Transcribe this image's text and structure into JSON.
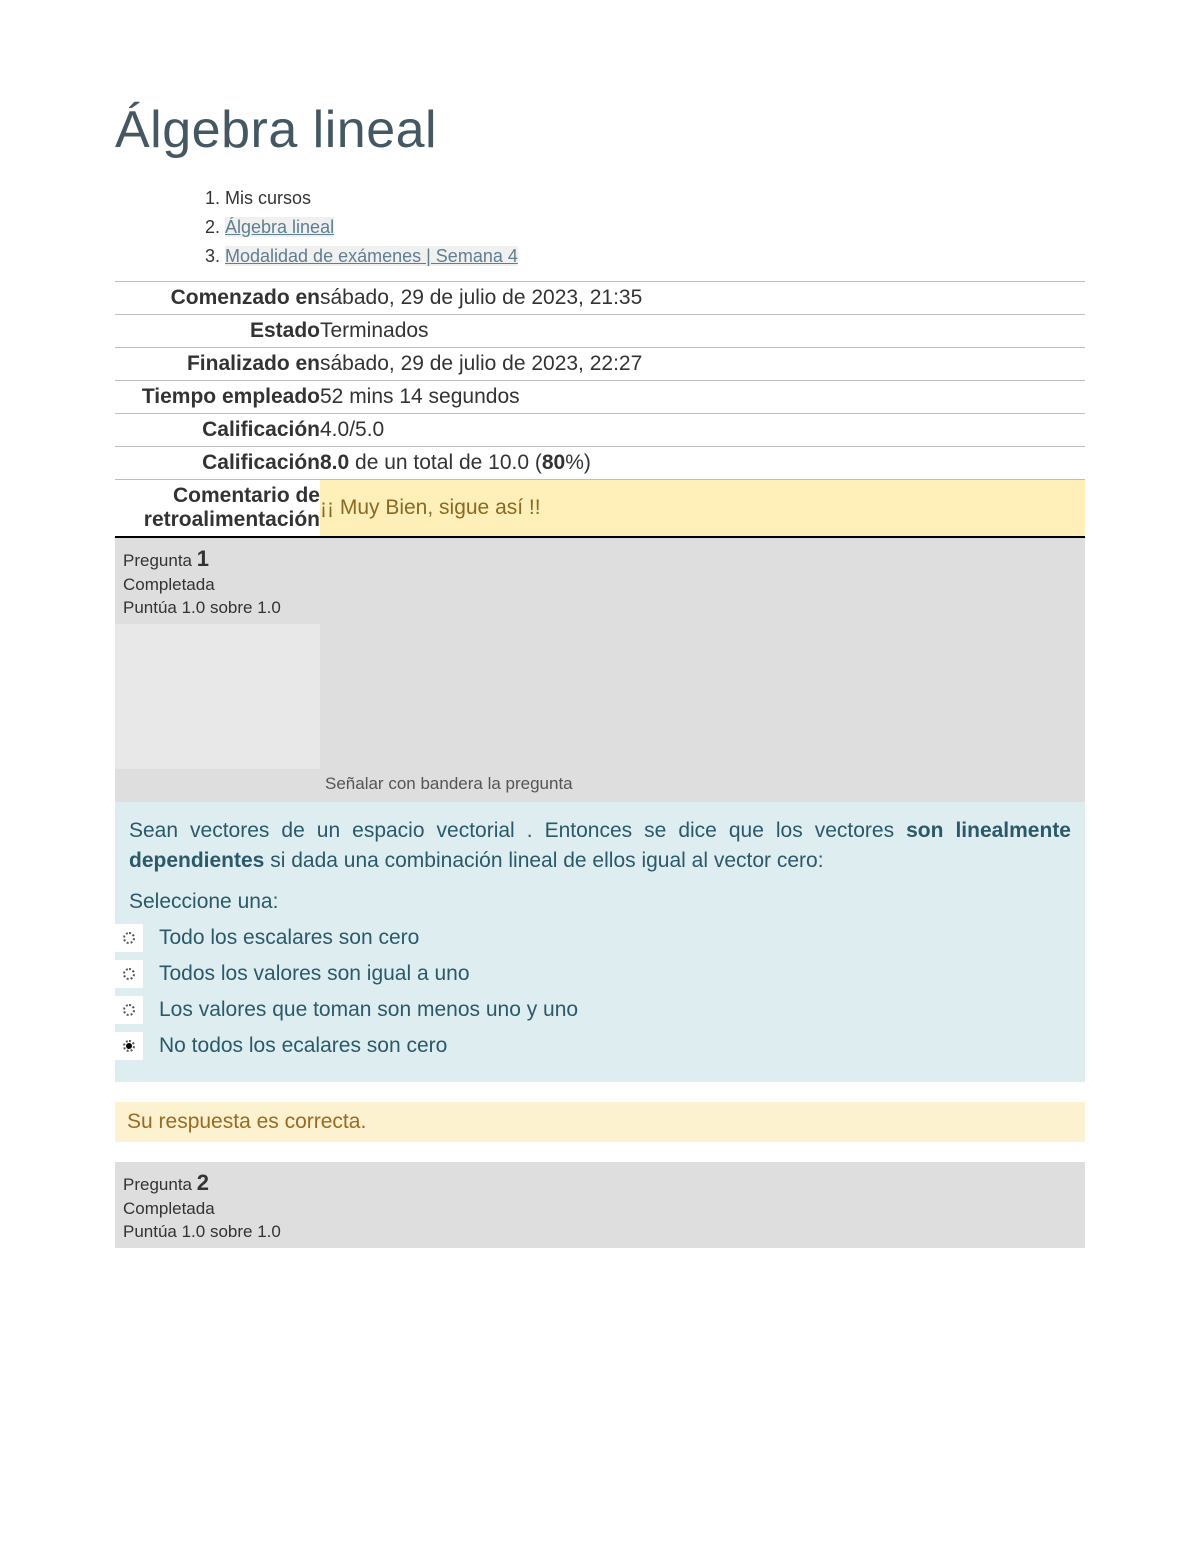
{
  "page": {
    "title": "Álgebra lineal"
  },
  "breadcrumb": {
    "items": [
      {
        "label": "Mis cursos",
        "link": false
      },
      {
        "label": "Álgebra lineal",
        "link": true
      },
      {
        "label": "Modalidad de exámenes | Semana 4",
        "link": true
      }
    ]
  },
  "summary": {
    "rows": [
      {
        "label": "Comenzado en",
        "value": "sábado, 29 de julio de 2023, 21:35"
      },
      {
        "label": "Estado",
        "value": "Terminados"
      },
      {
        "label": "Finalizado en",
        "value": "sábado, 29 de julio de 2023, 22:27"
      },
      {
        "label": "Tiempo empleado",
        "value": "52 mins 14 segundos"
      },
      {
        "label": "Calificación",
        "value": "4.0/5.0"
      }
    ],
    "grade2": {
      "label": "Calificación",
      "prefix": "8.0",
      "middle": " de un total de 10.0 (",
      "pct": "80",
      "suffix": "%)"
    },
    "feedback": {
      "label": "Comentario de retroalimentación",
      "value": "¡¡ Muy Bien, sigue así !!"
    }
  },
  "colors": {
    "title": "#435863",
    "link": "#5e7f8f",
    "header_bg": "#dedede",
    "question_bg": "#deedf0",
    "question_text": "#2a5a6a",
    "feedback_bg": "#ffefb8",
    "feedback_text": "#8a6a23",
    "correct_bg": "#fdf2d0",
    "correct_text": "#9a6a20",
    "border": "#bfbfbf"
  },
  "q1": {
    "label_pregunta": "Pregunta ",
    "number": "1",
    "status": "Completada",
    "score": "Puntúa 1.0 sobre 1.0",
    "flag": "Señalar con bandera la pregunta",
    "text_before": "Sean vectores de un espacio vectorial . Entonces se dice que los vectores ",
    "text_bold": "son linealmente dependientes",
    "text_after": " si dada una combinación lineal de ellos igual al vector cero:",
    "prompt": "Seleccione una:",
    "options": [
      {
        "text": "Todo los escalares son cero",
        "checked": false
      },
      {
        "text": "Todos los valores son igual a uno",
        "checked": false
      },
      {
        "text": "Los valores que toman son menos uno y uno",
        "checked": false
      },
      {
        "text": "No todos los ecalares son cero",
        "checked": true
      }
    ],
    "feedback": "Su respuesta es correcta."
  },
  "q2": {
    "label_pregunta": "Pregunta ",
    "number": "2",
    "status": "Completada",
    "score": "Puntúa 1.0 sobre 1.0"
  }
}
